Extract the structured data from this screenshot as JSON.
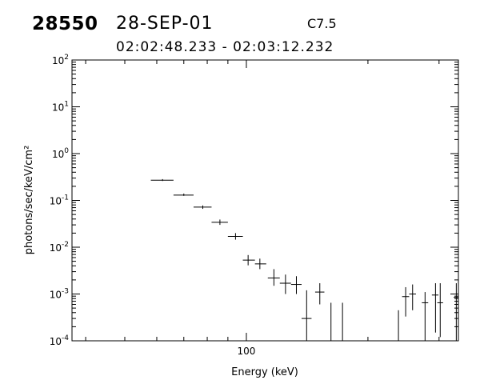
{
  "header": {
    "event_id": "28550",
    "date": "28-SEP-01",
    "goes_class": "C7.5",
    "time_range": "02:02:48.233 - 02:03:12.232"
  },
  "chart_data": {
    "type": "scatter",
    "xlabel": "Energy (keV)",
    "ylabel": "photons/sec/keV/cm²",
    "x_scale": "log",
    "y_scale": "log",
    "xlim": [
      37,
      335
    ],
    "ylim": [
      0.0001,
      100
    ],
    "x_ticks": [
      {
        "value": 100,
        "label": "100"
      }
    ],
    "y_ticks": [
      {
        "value": 100,
        "base": "10",
        "exp": "2"
      },
      {
        "value": 10,
        "base": "10",
        "exp": "1"
      },
      {
        "value": 1,
        "base": "10",
        "exp": "0"
      },
      {
        "value": 0.1,
        "base": "10",
        "exp": "-1"
      },
      {
        "value": 0.01,
        "base": "10",
        "exp": "-2"
      },
      {
        "value": 0.001,
        "base": "10",
        "exp": "-3"
      },
      {
        "value": 0.0001,
        "base": "10",
        "exp": "-4"
      }
    ],
    "grid": false,
    "points": [
      {
        "x": 62,
        "xlo": 58,
        "xhi": 66,
        "y": 0.27,
        "ylo": 0.26,
        "yhi": 0.285
      },
      {
        "x": 70,
        "xlo": 66,
        "xhi": 74,
        "y": 0.13,
        "ylo": 0.125,
        "yhi": 0.14
      },
      {
        "x": 78,
        "xlo": 74,
        "xhi": 82,
        "y": 0.072,
        "ylo": 0.066,
        "yhi": 0.078
      },
      {
        "x": 86,
        "xlo": 82,
        "xhi": 90,
        "y": 0.034,
        "ylo": 0.03,
        "yhi": 0.039
      },
      {
        "x": 94,
        "xlo": 90,
        "xhi": 98,
        "y": 0.017,
        "ylo": 0.0145,
        "yhi": 0.02
      },
      {
        "x": 101,
        "xlo": 98,
        "xhi": 105,
        "y": 0.0053,
        "ylo": 0.0041,
        "yhi": 0.0068
      },
      {
        "x": 108,
        "xlo": 105,
        "xhi": 112,
        "y": 0.0044,
        "ylo": 0.0034,
        "yhi": 0.0057
      },
      {
        "x": 117,
        "xlo": 113,
        "xhi": 121,
        "y": 0.0022,
        "ylo": 0.0015,
        "yhi": 0.0034
      },
      {
        "x": 125,
        "xlo": 121,
        "xhi": 129,
        "y": 0.0017,
        "ylo": 0.001,
        "yhi": 0.0026
      },
      {
        "x": 133,
        "xlo": 129,
        "xhi": 137,
        "y": 0.0016,
        "ylo": 0.001,
        "yhi": 0.0024
      },
      {
        "x": 141,
        "xlo": 137,
        "xhi": 145,
        "y": 0.0003,
        "ylo": 0.0001,
        "yhi": 0.0012
      },
      {
        "x": 152,
        "xlo": 148,
        "xhi": 156,
        "y": 0.0011,
        "ylo": 0.0006,
        "yhi": 0.0017
      },
      {
        "x": 162,
        "xlo": 159,
        "xhi": 165,
        "y": 0.0001,
        "ylo": 0.0001,
        "yhi": 0.00065
      },
      {
        "x": 173,
        "xlo": 170,
        "xhi": 176,
        "y": 0.0001,
        "ylo": 0.0001,
        "yhi": 0.00065
      },
      {
        "x": 238,
        "xlo": 236,
        "xhi": 240,
        "y": 0.0001,
        "ylo": 0.0001,
        "yhi": 0.00045
      },
      {
        "x": 248,
        "xlo": 243,
        "xhi": 253,
        "y": 0.00088,
        "ylo": 0.00033,
        "yhi": 0.0014
      },
      {
        "x": 258,
        "xlo": 253,
        "xhi": 263,
        "y": 0.001,
        "ylo": 0.00045,
        "yhi": 0.0016
      },
      {
        "x": 277,
        "xlo": 272,
        "xhi": 282,
        "y": 0.00065,
        "ylo": 0.0001,
        "yhi": 0.0011
      },
      {
        "x": 294,
        "xlo": 288,
        "xhi": 299,
        "y": 0.00095,
        "ylo": 0.00015,
        "yhi": 0.0017
      },
      {
        "x": 302,
        "xlo": 297,
        "xhi": 307,
        "y": 0.00065,
        "ylo": 0.00012,
        "yhi": 0.0017
      },
      {
        "x": 331,
        "xlo": 326,
        "xhi": 335,
        "y": 0.00085,
        "ylo": 0.0001,
        "yhi": 0.0017
      }
    ]
  }
}
